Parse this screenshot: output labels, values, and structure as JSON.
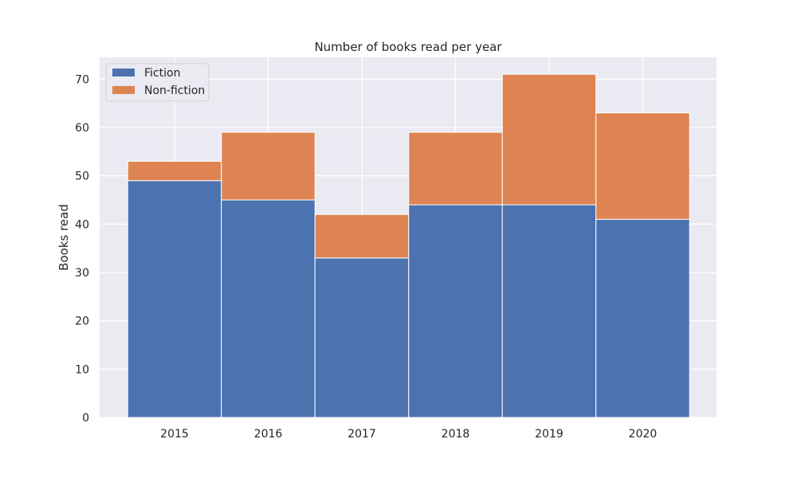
{
  "chart_data": {
    "type": "bar",
    "stacked": true,
    "title": "Number of books read per year",
    "xlabel": "",
    "ylabel": "Books read",
    "categories": [
      "2015",
      "2016",
      "2017",
      "2018",
      "2019",
      "2020"
    ],
    "series": [
      {
        "name": "Fiction",
        "values": [
          49,
          45,
          33,
          44,
          44,
          41
        ],
        "color": "#4C72B0"
      },
      {
        "name": "Non-fiction",
        "values": [
          4,
          14,
          9,
          15,
          27,
          22
        ],
        "color": "#DD8452"
      }
    ],
    "ylim": [
      0,
      74.5
    ],
    "yticks": [
      "0",
      "10",
      "20",
      "30",
      "40",
      "50",
      "60",
      "70"
    ],
    "grid": true,
    "legend_position": "top-left",
    "background_color": "#EAEAF2",
    "grid_color": "#FFFFFF"
  }
}
